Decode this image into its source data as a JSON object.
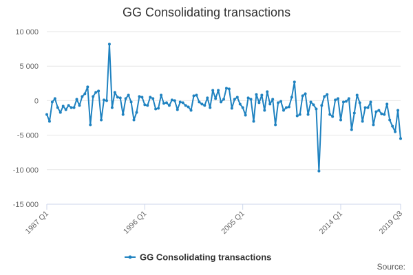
{
  "chart_data": {
    "type": "line",
    "title": "GG Consolidating transactions",
    "source_label": "Source:",
    "ylim": [
      -15000,
      10000
    ],
    "y_ticks": [
      10000,
      5000,
      0,
      -5000,
      -10000,
      -15000
    ],
    "y_tick_labels": [
      "10 000",
      "5 000",
      "0",
      "-5 000",
      "-10 000",
      "-15 000"
    ],
    "x_tick_labels": [
      "1987 Q1",
      "1996 Q1",
      "2005 Q1",
      "2014 Q1",
      "2019 Q3"
    ],
    "x_tick_indices": [
      0,
      36,
      72,
      108,
      130
    ],
    "grid": true,
    "legend_position": "bottom-center",
    "colors": {
      "series": "#1f82c0",
      "grid": "#e6e6e6",
      "axis": "#ccd6eb"
    },
    "series": [
      {
        "name": "GG Consolidating transactions",
        "x": [
          "1987 Q1",
          "1987 Q2",
          "1987 Q3",
          "1987 Q4",
          "1988 Q1",
          "1988 Q2",
          "1988 Q3",
          "1988 Q4",
          "1989 Q1",
          "1989 Q2",
          "1989 Q3",
          "1989 Q4",
          "1990 Q1",
          "1990 Q2",
          "1990 Q3",
          "1990 Q4",
          "1991 Q1",
          "1991 Q2",
          "1991 Q3",
          "1991 Q4",
          "1992 Q1",
          "1992 Q2",
          "1992 Q3",
          "1992 Q4",
          "1993 Q1",
          "1993 Q2",
          "1993 Q3",
          "1993 Q4",
          "1994 Q1",
          "1994 Q2",
          "1994 Q3",
          "1994 Q4",
          "1995 Q1",
          "1995 Q2",
          "1995 Q3",
          "1995 Q4",
          "1996 Q1",
          "1996 Q2",
          "1996 Q3",
          "1996 Q4",
          "1997 Q1",
          "1997 Q2",
          "1997 Q3",
          "1997 Q4",
          "1998 Q1",
          "1998 Q2",
          "1998 Q3",
          "1998 Q4",
          "1999 Q1",
          "1999 Q2",
          "1999 Q3",
          "1999 Q4",
          "2000 Q1",
          "2000 Q2",
          "2000 Q3",
          "2000 Q4",
          "2001 Q1",
          "2001 Q2",
          "2001 Q3",
          "2001 Q4",
          "2002 Q1",
          "2002 Q2",
          "2002 Q3",
          "2002 Q4",
          "2003 Q1",
          "2003 Q2",
          "2003 Q3",
          "2003 Q4",
          "2004 Q1",
          "2004 Q2",
          "2004 Q3",
          "2004 Q4",
          "2005 Q1",
          "2005 Q2",
          "2005 Q3",
          "2005 Q4",
          "2006 Q1",
          "2006 Q2",
          "2006 Q3",
          "2006 Q4",
          "2007 Q1",
          "2007 Q2",
          "2007 Q3",
          "2007 Q4",
          "2008 Q1",
          "2008 Q2",
          "2008 Q3",
          "2008 Q4",
          "2009 Q1",
          "2009 Q2",
          "2009 Q3",
          "2009 Q4",
          "2010 Q1",
          "2010 Q2",
          "2010 Q3",
          "2010 Q4",
          "2011 Q1",
          "2011 Q2",
          "2011 Q3",
          "2011 Q4",
          "2012 Q1",
          "2012 Q2",
          "2012 Q3",
          "2012 Q4",
          "2013 Q1",
          "2013 Q2",
          "2013 Q3",
          "2013 Q4",
          "2014 Q1",
          "2014 Q2",
          "2014 Q3",
          "2014 Q4",
          "2015 Q1",
          "2015 Q2",
          "2015 Q3",
          "2015 Q4",
          "2016 Q1",
          "2016 Q2",
          "2016 Q3",
          "2016 Q4",
          "2017 Q1",
          "2017 Q2",
          "2017 Q3",
          "2017 Q4",
          "2018 Q1",
          "2018 Q2",
          "2018 Q3",
          "2018 Q4",
          "2019 Q1",
          "2019 Q2",
          "2019 Q3"
        ],
        "values": [
          -2000,
          -3000,
          -200,
          300,
          -1000,
          -1700,
          -800,
          -1300,
          -700,
          -1000,
          -1000,
          200,
          -700,
          600,
          1000,
          2000,
          -3500,
          600,
          1200,
          1400,
          -2800,
          100,
          0,
          8200,
          -1000,
          1200,
          500,
          400,
          -2000,
          300,
          800,
          -200,
          -2800,
          -1700,
          600,
          500,
          -600,
          -700,
          500,
          300,
          -1200,
          -1100,
          800,
          -400,
          -300,
          -700,
          100,
          0,
          -1300,
          -200,
          -300,
          -700,
          -900,
          -1400,
          700,
          800,
          -200,
          -500,
          -700,
          400,
          -1000,
          1500,
          300,
          1500,
          -200,
          200,
          1800,
          1700,
          -1100,
          200,
          500,
          -500,
          -1000,
          -2100,
          400,
          200,
          -3000,
          900,
          -300,
          800,
          -1400,
          1300,
          -500,
          200,
          -3500,
          -300,
          -100,
          -1400,
          -1000,
          -900,
          500,
          2700,
          -2200,
          -2000,
          700,
          1000,
          -2000,
          -200,
          -600,
          -1200,
          -10200,
          -700,
          600,
          900,
          -2000,
          -2300,
          100,
          300,
          -2800,
          -200,
          -100,
          300,
          -4200,
          -1800,
          800,
          -300,
          -3000,
          -1000,
          -1000,
          -200,
          -3500,
          -1600,
          -1400,
          -1900,
          -2000,
          -500,
          -2800,
          -3700,
          -4500,
          -1400,
          -5500
        ]
      }
    ]
  }
}
